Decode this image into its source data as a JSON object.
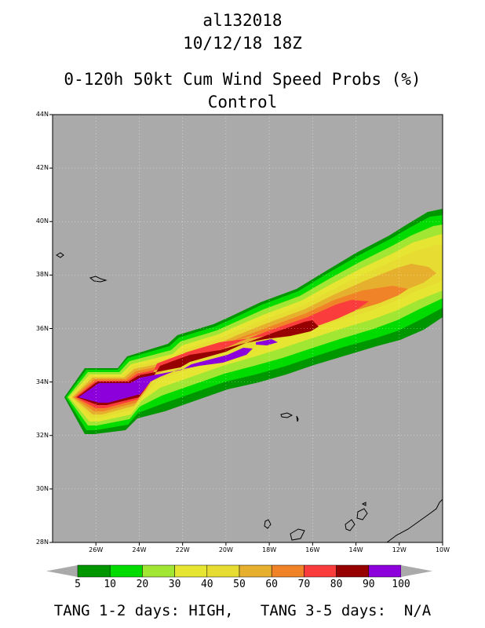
{
  "header": {
    "storm_id": "al132018",
    "datetime": "10/12/18 18Z",
    "product": "0-120h 50kt Cum Wind Speed Probs (%)",
    "run": "Control"
  },
  "map": {
    "lat_labels": [
      "44N",
      "42N",
      "40N",
      "38N",
      "36N",
      "34N",
      "32N",
      "30N",
      "28N"
    ],
    "lon_labels": [
      "26W",
      "24W",
      "22W",
      "20W",
      "18W",
      "16W",
      "14W",
      "12W",
      "10W"
    ],
    "lat_range": [
      28,
      44
    ],
    "lon_range": [
      -28,
      -10
    ],
    "background_color": "#aaaaaa",
    "land_outline_color": "#000000"
  },
  "colorbar": {
    "labels": [
      "5",
      "10",
      "20",
      "30",
      "40",
      "50",
      "60",
      "70",
      "80",
      "90",
      "100"
    ],
    "colors": [
      "#009600",
      "#00dc00",
      "#a0e632",
      "#e6e632",
      "#e6dc32",
      "#e6af2d",
      "#f08228",
      "#fa3c3c",
      "#960000",
      "#8c00dc"
    ],
    "end_color": "#aaaaaa"
  },
  "footer": {
    "text": "TANG 1-2 days: HIGH,   TANG 3-5 days:  N/A"
  }
}
